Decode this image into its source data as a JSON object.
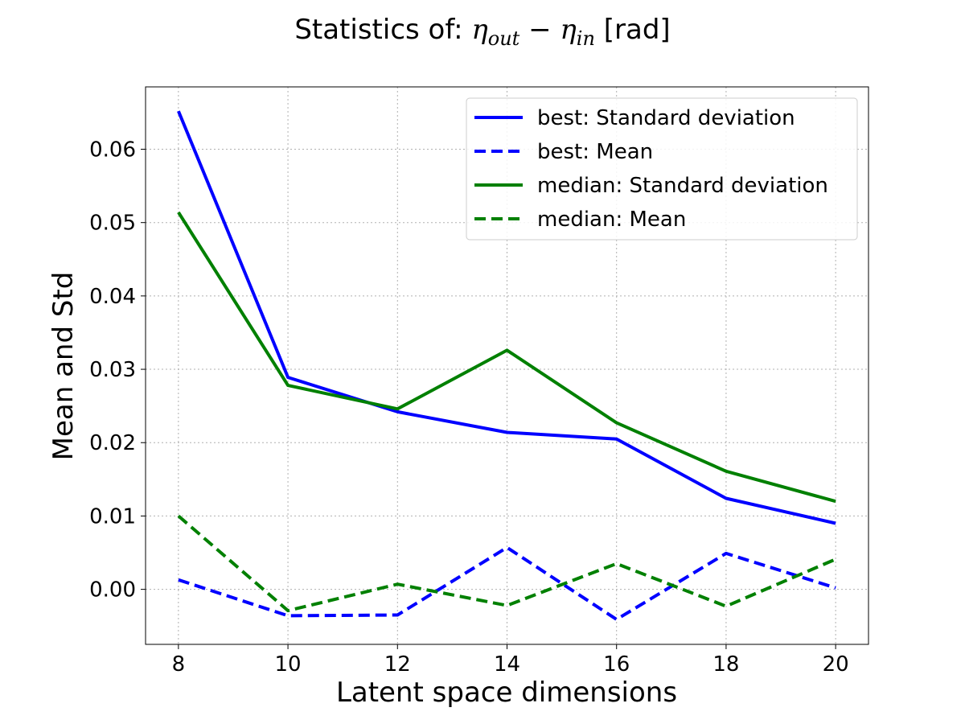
{
  "chart_data": {
    "type": "line",
    "title": {
      "prefix": "Statistics of: ",
      "eta1": "η",
      "sub1": "out",
      "minus": " − ",
      "eta2": "η",
      "sub2": "in",
      "suffix": " [rad]"
    },
    "xlabel": "Latent space dimensions",
    "ylabel": "Mean and Std",
    "x": [
      8,
      10,
      12,
      14,
      16,
      18,
      20
    ],
    "x_ticks": [
      "8",
      "10",
      "12",
      "14",
      "16",
      "18",
      "20"
    ],
    "y_ticks": [
      "0.00",
      "0.01",
      "0.02",
      "0.03",
      "0.04",
      "0.05",
      "0.06"
    ],
    "y_tick_values": [
      0.0,
      0.01,
      0.02,
      0.03,
      0.04,
      0.05,
      0.06
    ],
    "xlim": [
      7.4,
      20.6
    ],
    "ylim": [
      -0.0075,
      0.0685
    ],
    "grid": true,
    "legend_position": "top-right",
    "series": [
      {
        "name": "best: Standard deviation",
        "color": "#0000ff",
        "style": "solid",
        "values": [
          0.0652,
          0.0289,
          0.0242,
          0.0214,
          0.0205,
          0.0124,
          0.009
        ]
      },
      {
        "name": "best: Mean",
        "color": "#0000ff",
        "style": "dashed",
        "values": [
          0.0013,
          -0.0036,
          -0.0035,
          0.0057,
          -0.0041,
          0.0049,
          0.0002
        ]
      },
      {
        "name": "median: Standard deviation",
        "color": "#008000",
        "style": "solid",
        "values": [
          0.0514,
          0.0278,
          0.0246,
          0.0326,
          0.0227,
          0.0161,
          0.012
        ]
      },
      {
        "name": "median: Mean",
        "color": "#008000",
        "style": "dashed",
        "values": [
          0.01,
          -0.0029,
          0.0007,
          -0.0022,
          0.0035,
          -0.0023,
          0.0041
        ]
      }
    ]
  }
}
